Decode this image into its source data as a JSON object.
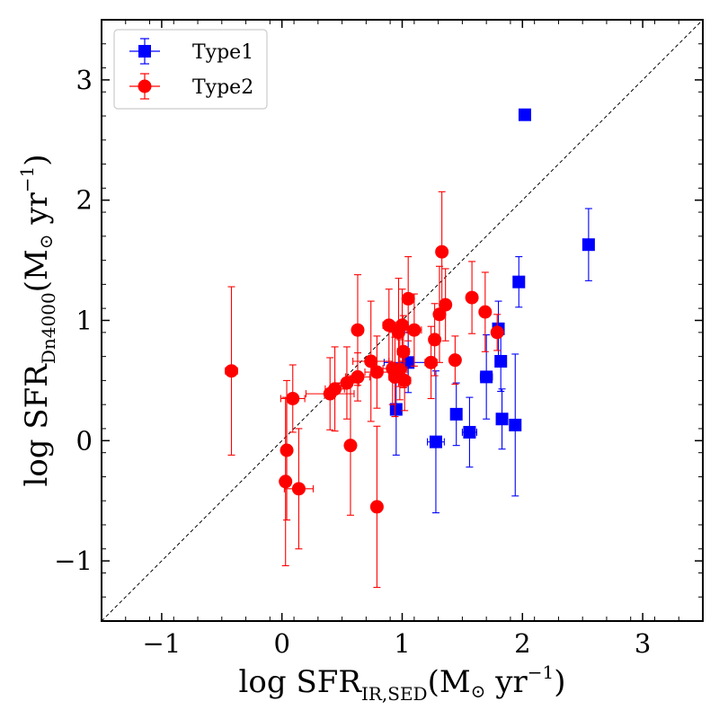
{
  "chart_data": {
    "type": "scatter",
    "xlabel": {
      "main": "log SFR",
      "sub": "IR,SED",
      "unit": "(M",
      "unit_sym": "⊙",
      "unit_tail": " yr",
      "sup": "−1",
      "close": ")"
    },
    "ylabel": {
      "main": "log SFR",
      "sub": "Dn4000",
      "unit": "(M",
      "unit_sym": "⊙",
      "unit_tail": " yr",
      "sup": "−1",
      "close": ")"
    },
    "xlim": [
      -1.5,
      3.5
    ],
    "ylim": [
      -1.5,
      3.5
    ],
    "xticks": [
      -1,
      0,
      1,
      2,
      3
    ],
    "yticks": [
      -1,
      0,
      1,
      2,
      3
    ],
    "xtick_labels": [
      "−1",
      "0",
      "1",
      "2",
      "3"
    ],
    "ytick_labels": [
      "−1",
      "0",
      "1",
      "2",
      "3"
    ],
    "one_to_one_line": true,
    "legend": {
      "position": "top-left",
      "entries": [
        "Type1",
        "Type2"
      ]
    },
    "series": [
      {
        "name": "Type1",
        "marker": "square",
        "color": "#0000ff",
        "points": [
          {
            "x": 2.02,
            "y": 2.71,
            "yerr": 0.0,
            "xerr": 0.02
          },
          {
            "x": 2.55,
            "y": 1.63,
            "yerr": 0.3,
            "xerr": 0.03
          },
          {
            "x": 1.97,
            "y": 1.32,
            "yerr": 0.21,
            "xerr": 0.03
          },
          {
            "x": 1.8,
            "y": 0.93,
            "yerr": 0.23,
            "xerr": 0.04
          },
          {
            "x": 1.82,
            "y": 0.66,
            "yerr": 0.25,
            "xerr": 0.04
          },
          {
            "x": 1.7,
            "y": 0.53,
            "yerr": 0.35,
            "xerr": 0.05
          },
          {
            "x": 1.83,
            "y": 0.18,
            "yerr": 0.25,
            "xerr": 0.04
          },
          {
            "x": 1.94,
            "y": 0.13,
            "yerr": 0.59,
            "xerr": 0.04
          },
          {
            "x": 1.56,
            "y": 0.07,
            "yerr": 0.29,
            "xerr": 0.06
          },
          {
            "x": 1.45,
            "y": 0.22,
            "yerr": 0.26,
            "xerr": 0.04
          },
          {
            "x": 1.28,
            "y": -0.01,
            "yerr": 0.59,
            "xerr": 0.07
          },
          {
            "x": 1.05,
            "y": 0.65,
            "yerr": 0.25,
            "xerr": 0.2
          },
          {
            "x": 0.95,
            "y": 0.26,
            "yerr": 0.38,
            "xerr": 0.04
          }
        ]
      },
      {
        "name": "Type2",
        "marker": "circle",
        "color": "#ff0000",
        "points": [
          {
            "x": -0.42,
            "y": 0.58,
            "yerr": 0.7,
            "xerr": 0.05
          },
          {
            "x": 0.03,
            "y": -0.34,
            "yerr": 0.7,
            "xerr": 0.02
          },
          {
            "x": 0.04,
            "y": -0.08,
            "yerr": 0.58,
            "xerr": 0.02
          },
          {
            "x": 0.09,
            "y": 0.35,
            "yerr": 0.28,
            "xerr": 0.1
          },
          {
            "x": 0.14,
            "y": -0.4,
            "yerr": 0.5,
            "xerr": 0.12
          },
          {
            "x": 0.4,
            "y": 0.39,
            "yerr": 0.3,
            "xerr": 0.2
          },
          {
            "x": 0.44,
            "y": 0.43,
            "yerr": 0.35,
            "xerr": 0.08
          },
          {
            "x": 0.54,
            "y": 0.48,
            "yerr": 0.3,
            "xerr": 0.1
          },
          {
            "x": 0.57,
            "y": -0.04,
            "yerr": 0.58,
            "xerr": 0.03
          },
          {
            "x": 0.63,
            "y": 0.92,
            "yerr": 0.46,
            "xerr": 0.02
          },
          {
            "x": 0.63,
            "y": 0.53,
            "yerr": 0.2,
            "xerr": 0.1
          },
          {
            "x": 0.74,
            "y": 0.66,
            "yerr": 0.5,
            "xerr": 0.15
          },
          {
            "x": 0.79,
            "y": 0.57,
            "yerr": 0.3,
            "xerr": 0.1
          },
          {
            "x": 0.79,
            "y": -0.55,
            "yerr": 0.67,
            "xerr": 0.02
          },
          {
            "x": 0.89,
            "y": 0.96,
            "yerr": 0.3,
            "xerr": 0.05
          },
          {
            "x": 0.92,
            "y": 0.6,
            "yerr": 0.3,
            "xerr": 0.08
          },
          {
            "x": 0.94,
            "y": 0.53,
            "yerr": 0.33,
            "xerr": 0.05
          },
          {
            "x": 0.97,
            "y": 0.9,
            "yerr": 0.45,
            "xerr": 0.04
          },
          {
            "x": 0.98,
            "y": 0.59,
            "yerr": 0.25,
            "xerr": 0.06
          },
          {
            "x": 1.0,
            "y": 0.96,
            "yerr": 0.3,
            "xerr": 0.05
          },
          {
            "x": 1.01,
            "y": 0.74,
            "yerr": 0.3,
            "xerr": 0.05
          },
          {
            "x": 1.02,
            "y": 0.5,
            "yerr": 0.25,
            "xerr": 0.05
          },
          {
            "x": 1.05,
            "y": 1.18,
            "yerr": 0.35,
            "xerr": 0.05
          },
          {
            "x": 1.1,
            "y": 0.92,
            "yerr": 0.3,
            "xerr": 0.06
          },
          {
            "x": 1.24,
            "y": 0.65,
            "yerr": 0.3,
            "xerr": 0.05
          },
          {
            "x": 1.27,
            "y": 0.84,
            "yerr": 0.3,
            "xerr": 0.03
          },
          {
            "x": 1.31,
            "y": 1.05,
            "yerr": 0.4,
            "xerr": 0.04
          },
          {
            "x": 1.33,
            "y": 1.57,
            "yerr": 0.5,
            "xerr": 0.03
          },
          {
            "x": 1.36,
            "y": 1.13,
            "yerr": 0.3,
            "xerr": 0.04
          },
          {
            "x": 1.44,
            "y": 0.67,
            "yerr": 0.2,
            "xerr": 0.03
          },
          {
            "x": 1.58,
            "y": 1.19,
            "yerr": 0.3,
            "xerr": 0.04
          },
          {
            "x": 1.69,
            "y": 1.07,
            "yerr": 0.33,
            "xerr": 0.04
          },
          {
            "x": 1.79,
            "y": 0.9,
            "yerr": 0.15,
            "xerr": 0.03
          }
        ]
      }
    ]
  }
}
